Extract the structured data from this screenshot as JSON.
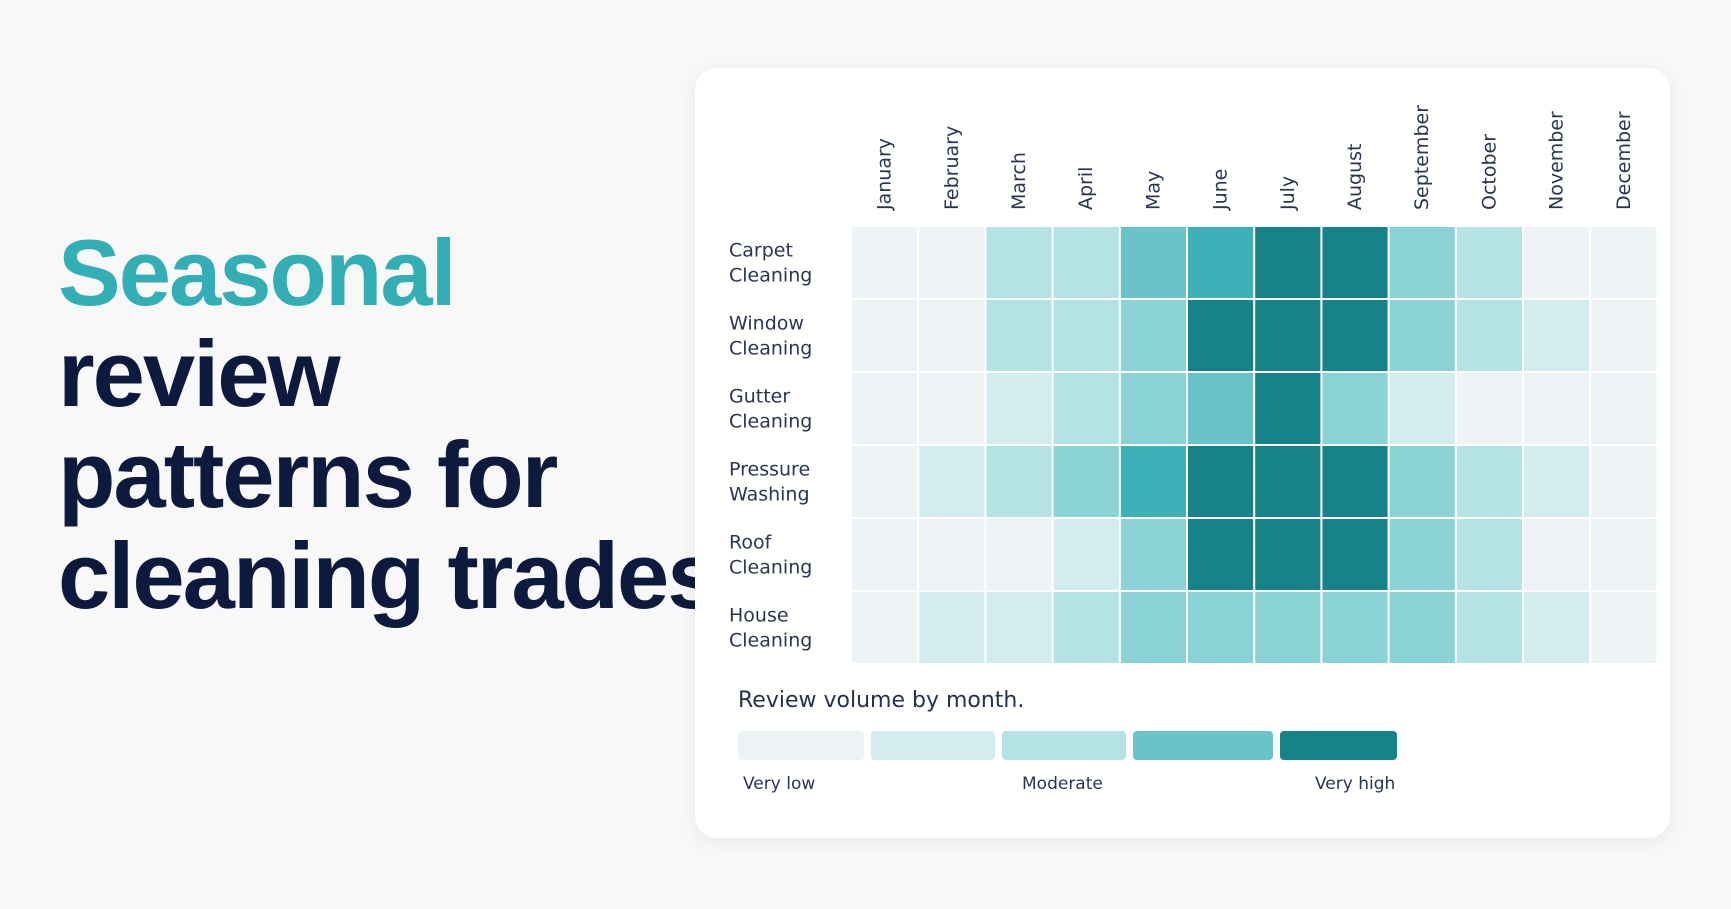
{
  "headline": {
    "accent": "Seasonal",
    "lines": [
      "review",
      "patterns for",
      "cleaning trades."
    ]
  },
  "colors": {
    "headline_accent": "#33aeb4",
    "headline_text": "#0d1a3d",
    "scale": [
      "#eef3f6",
      "#d3ecef",
      "#b5e2e5",
      "#8bd2d7",
      "#6ac3c9",
      "#3fb0b8",
      "#178289"
    ]
  },
  "chart_data": {
    "type": "heatmap",
    "title": "Review volume by month.",
    "x_categories": [
      "January",
      "February",
      "March",
      "April",
      "May",
      "June",
      "July",
      "August",
      "September",
      "October",
      "November",
      "December"
    ],
    "y_categories": [
      "Carpet Cleaning",
      "Window Cleaning",
      "Gutter Cleaning",
      "Pressure Washing",
      "Roof Cleaning",
      "House Cleaning"
    ],
    "value_scale": "0 (very low) to 6 (very high)",
    "values": [
      [
        0,
        0,
        2,
        2,
        4,
        5,
        6,
        6,
        3,
        2,
        0,
        0
      ],
      [
        0,
        0,
        2,
        2,
        3,
        6,
        6,
        6,
        3,
        2,
        1,
        0
      ],
      [
        0,
        0,
        1,
        2,
        3,
        4,
        6,
        3,
        1,
        0,
        0,
        0
      ],
      [
        0,
        1,
        2,
        3,
        5,
        6,
        6,
        6,
        3,
        2,
        1,
        0
      ],
      [
        0,
        0,
        0,
        1,
        3,
        6,
        6,
        6,
        3,
        2,
        0,
        0
      ],
      [
        0,
        1,
        1,
        2,
        3,
        3,
        3,
        3,
        3,
        2,
        1,
        0
      ]
    ],
    "legend": {
      "levels": [
        0,
        1,
        2,
        4,
        6
      ],
      "labels": [
        {
          "text": "Very low",
          "level": 0
        },
        {
          "text": "Moderate",
          "level": 2
        },
        {
          "text": "Very high",
          "level": 6
        }
      ]
    }
  }
}
